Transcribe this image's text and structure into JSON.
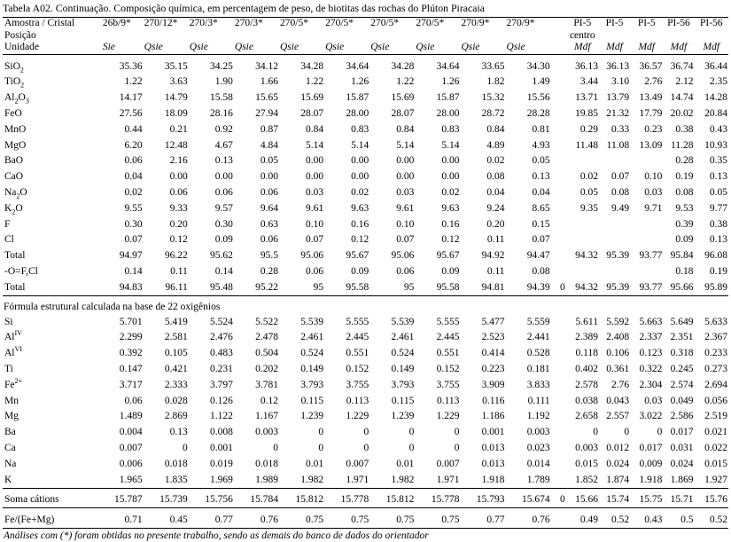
{
  "caption": "Tabela A02. Continuação. Composição química, em percentagem de peso, de biotitas das rochas do Plúton Piracaia",
  "header": {
    "row1_label": "Amostra / Cristal",
    "samples": [
      "26b/9*",
      "270/12*",
      "270/3*",
      "270/3*",
      "270/5*",
      "270/5*",
      "270/5*",
      "270/5*",
      "270/9*",
      "270/9*",
      "",
      "PI-5",
      "PI-5",
      "PI-5",
      "PI-56",
      "PI-56"
    ],
    "row2_label": "Posição",
    "positions": [
      "",
      "",
      "",
      "",
      "",
      "",
      "",
      "",
      "",
      "",
      "",
      "centro",
      "",
      "",
      "",
      ""
    ],
    "row3_label": "Unidade",
    "units": [
      "Sie",
      "Qsie",
      "Qsie",
      "Qsie",
      "Qsie",
      "Qsie",
      "Qsie",
      "Qsie",
      "Qsie",
      "Qsie",
      "",
      "Mdf",
      "Mdf",
      "Mdf",
      "Mdf",
      "Mdf"
    ]
  },
  "oxides": [
    {
      "pre": "SiO",
      "sub": "2",
      "post": "",
      "v": [
        "35.36",
        "35.15",
        "34.25",
        "34.12",
        "34.28",
        "34.64",
        "34.28",
        "34.64",
        "33.65",
        "34.30",
        "",
        "36.13",
        "36.13",
        "36.57",
        "36.74",
        "36.44"
      ]
    },
    {
      "pre": "TiO",
      "sub": "2",
      "post": "",
      "v": [
        "1.22",
        "3.63",
        "1.90",
        "1.66",
        "1.22",
        "1.26",
        "1.22",
        "1.26",
        "1.82",
        "1.49",
        "",
        "3.44",
        "3.10",
        "2.76",
        "2.12",
        "2.35"
      ]
    },
    {
      "pre": "Al",
      "sub": "2",
      "post": "O",
      "sub2": "3",
      "v": [
        "14.17",
        "14.79",
        "15.58",
        "15.65",
        "15.69",
        "15.87",
        "15.69",
        "15.87",
        "15.32",
        "15.56",
        "",
        "13.71",
        "13.79",
        "13.49",
        "14.74",
        "14.28"
      ]
    },
    {
      "pre": "FeO",
      "sub": "",
      "post": "",
      "v": [
        "27.56",
        "18.09",
        "28.16",
        "27.94",
        "28.07",
        "28.00",
        "28.07",
        "28.00",
        "28.72",
        "28.28",
        "",
        "19.85",
        "21.32",
        "17.79",
        "20.02",
        "20.84"
      ]
    },
    {
      "pre": "MnO",
      "sub": "",
      "post": "",
      "v": [
        "0.44",
        "0.21",
        "0.92",
        "0.87",
        "0.84",
        "0.83",
        "0.84",
        "0.83",
        "0.84",
        "0.81",
        "",
        "0.29",
        "0.33",
        "0.23",
        "0.38",
        "0.43"
      ]
    },
    {
      "pre": "MgO",
      "sub": "",
      "post": "",
      "v": [
        "6.20",
        "12.48",
        "4.67",
        "4.84",
        "5.14",
        "5.14",
        "5.14",
        "5.14",
        "4.89",
        "4.93",
        "",
        "11.48",
        "11.08",
        "13.09",
        "11.28",
        "10.93"
      ]
    },
    {
      "pre": "BaO",
      "sub": "",
      "post": "",
      "v": [
        "0.06",
        "2.16",
        "0.13",
        "0.05",
        "0.00",
        "0.00",
        "0.00",
        "0.00",
        "0.02",
        "0.05",
        "",
        "",
        "",
        "",
        "0.28",
        "0.35"
      ]
    },
    {
      "pre": "CaO",
      "sub": "",
      "post": "",
      "v": [
        "0.04",
        "0.00",
        "0.00",
        "0.00",
        "0.00",
        "0.00",
        "0.00",
        "0.00",
        "0.08",
        "0.13",
        "",
        "0.02",
        "0.07",
        "0.10",
        "0.19",
        "0.13"
      ]
    },
    {
      "pre": "Na",
      "sub": "2",
      "post": "O",
      "v": [
        "0.02",
        "0.06",
        "0.06",
        "0.06",
        "0.03",
        "0.02",
        "0.03",
        "0.02",
        "0.04",
        "0.04",
        "",
        "0.05",
        "0.08",
        "0.03",
        "0.08",
        "0.05"
      ]
    },
    {
      "pre": "K",
      "sub": "2",
      "post": "O",
      "v": [
        "9.55",
        "9.33",
        "9.57",
        "9.64",
        "9.61",
        "9.63",
        "9.61",
        "9.63",
        "9.24",
        "8.65",
        "",
        "9.35",
        "9.49",
        "9.71",
        "9.53",
        "9.77"
      ]
    },
    {
      "pre": "F",
      "sub": "",
      "post": "",
      "v": [
        "0.30",
        "0.20",
        "0.30",
        "0.63",
        "0.10",
        "0.16",
        "0.10",
        "0.16",
        "0.20",
        "0.15",
        "",
        "",
        "",
        "",
        "0.39",
        "0.38"
      ]
    },
    {
      "pre": "Cl",
      "sub": "",
      "post": "",
      "v": [
        "0.07",
        "0.12",
        "0.09",
        "0.06",
        "0.07",
        "0.12",
        "0.07",
        "0.12",
        "0.11",
        "0.07",
        "",
        "",
        "",
        "",
        "0.09",
        "0.13"
      ]
    },
    {
      "pre": "Total",
      "sub": "",
      "post": "",
      "v": [
        "94.97",
        "96.22",
        "95.62",
        "95.5",
        "95.06",
        "95.67",
        "95.06",
        "95.67",
        "94.92",
        "94.47",
        "",
        "94.32",
        "95.39",
        "93.77",
        "95.84",
        "96.08"
      ]
    },
    {
      "pre": " -O=F,Cl",
      "sub": "",
      "post": "",
      "v": [
        "0.14",
        "0.11",
        "0.14",
        "0.28",
        "0.06",
        "0.09",
        "0.06",
        "0.09",
        "0.11",
        "0.08",
        "",
        "",
        "",
        "",
        "0.18",
        "0.19"
      ]
    },
    {
      "pre": "Total",
      "sub": "",
      "post": "",
      "v": [
        "94.83",
        "96.11",
        "95.48",
        "95.22",
        "95",
        "95.58",
        "95",
        "95.58",
        "94.81",
        "94.39",
        "0",
        "94.32",
        "95.39",
        "93.77",
        "95.66",
        "95.89"
      ]
    }
  ],
  "formula_title": "Fórmula estrutural calculada na base de 22 oxigênios",
  "cations": [
    {
      "pre": "Si",
      "sup": "",
      "v": [
        "5.701",
        "5.419",
        "5.524",
        "5.522",
        "5.539",
        "5.555",
        "5.539",
        "5.555",
        "5.477",
        "5.559",
        "",
        "5.611",
        "5.592",
        "5.663",
        "5.649",
        "5.633"
      ]
    },
    {
      "pre": "Al",
      "sup": "IV",
      "v": [
        "2.299",
        "2.581",
        "2.476",
        "2.478",
        "2.461",
        "2.445",
        "2.461",
        "2.445",
        "2.523",
        "2.441",
        "",
        "2.389",
        "2.408",
        "2.337",
        "2.351",
        "2.367"
      ]
    },
    {
      "pre": "Al",
      "sup": "VI",
      "v": [
        "0.392",
        "0.105",
        "0.483",
        "0.504",
        "0.524",
        "0.551",
        "0.524",
        "0.551",
        "0.414",
        "0.528",
        "",
        "0.118",
        "0.106",
        "0.123",
        "0.318",
        "0.233"
      ]
    },
    {
      "pre": "Ti",
      "sup": "",
      "v": [
        "0.147",
        "0.421",
        "0.231",
        "0.202",
        "0.149",
        "0.152",
        "0.149",
        "0.152",
        "0.223",
        "0.181",
        "",
        "0.402",
        "0.361",
        "0.322",
        "0.245",
        "0.273"
      ]
    },
    {
      "pre": "Fe",
      "sup": "2+",
      "v": [
        "3.717",
        "2.333",
        "3.797",
        "3.781",
        "3.793",
        "3.755",
        "3.793",
        "3.755",
        "3.909",
        "3.833",
        "",
        "2.578",
        "2.76",
        "2.304",
        "2.574",
        "2.694"
      ]
    },
    {
      "pre": "Mn",
      "sup": "",
      "v": [
        "0.06",
        "0.028",
        "0.126",
        "0.12",
        "0.115",
        "0.113",
        "0.115",
        "0.113",
        "0.116",
        "0.111",
        "",
        "0.038",
        "0.043",
        "0.03",
        "0.049",
        "0.056"
      ]
    },
    {
      "pre": "Mg",
      "sup": "",
      "v": [
        "1.489",
        "2.869",
        "1.122",
        "1.167",
        "1.239",
        "1.229",
        "1.239",
        "1.229",
        "1.186",
        "1.192",
        "",
        "2.658",
        "2.557",
        "3.022",
        "2.586",
        "2.519"
      ]
    },
    {
      "pre": "Ba",
      "sup": "",
      "v": [
        "0.004",
        "0.13",
        "0.008",
        "0.003",
        "0",
        "0",
        "0",
        "0",
        "0.001",
        "0.003",
        "",
        "0",
        "0",
        "0",
        "0.017",
        "0.021"
      ]
    },
    {
      "pre": "Ca",
      "sup": "",
      "v": [
        "0.007",
        "0",
        "0.001",
        "0",
        "0",
        "0",
        "0",
        "0",
        "0.013",
        "0.023",
        "",
        "0.003",
        "0.012",
        "0.017",
        "0.031",
        "0.022"
      ]
    },
    {
      "pre": "Na",
      "sup": "",
      "v": [
        "0.006",
        "0.018",
        "0.019",
        "0.018",
        "0.01",
        "0.007",
        "0.01",
        "0.007",
        "0.013",
        "0.014",
        "",
        "0.015",
        "0.024",
        "0.009",
        "0.024",
        "0.015"
      ]
    },
    {
      "pre": "K",
      "sup": "",
      "v": [
        "1.965",
        "1.835",
        "1.969",
        "1.989",
        "1.982",
        "1.971",
        "1.982",
        "1.971",
        "1.918",
        "1.789",
        "",
        "1.852",
        "1.874",
        "1.918",
        "1.869",
        "1.927"
      ]
    }
  ],
  "soma": {
    "pre": "Soma cátions",
    "v": [
      "15.787",
      "15.739",
      "15.756",
      "15.784",
      "15.812",
      "15.778",
      "15.812",
      "15.778",
      "15.793",
      "15.674",
      "0",
      "15.66",
      "15.74",
      "15.75",
      "15.71",
      "15.76"
    ]
  },
  "fe_ratio": {
    "pre": "Fe/(Fe+Mg)",
    "v": [
      "0.71",
      "0.45",
      "0.77",
      "0.76",
      "0.75",
      "0.75",
      "0.75",
      "0.75",
      "0.77",
      "0.76",
      "",
      "0.49",
      "0.52",
      "0.43",
      "0.5",
      "0.52"
    ]
  },
  "footnote": "Análises com (*) foram obtidas no presente trabalho, sendo as demais do banco de dados do orientador"
}
